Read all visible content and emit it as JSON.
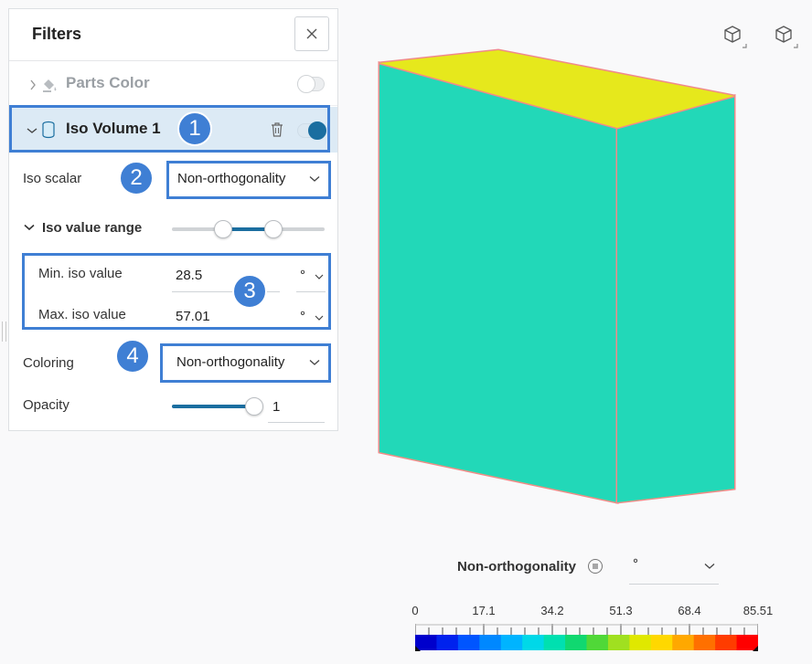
{
  "panel": {
    "title": "Filters",
    "close_icon": "close-icon"
  },
  "filters": [
    {
      "label": "Parts Color",
      "enabled": false,
      "expanded": false,
      "icon": "paint-bucket-icon"
    },
    {
      "label": "Iso Volume 1",
      "enabled": true,
      "expanded": true,
      "icon": "cylinder-icon"
    }
  ],
  "iso_volume": {
    "iso_scalar_label": "Iso scalar",
    "iso_scalar_value": "Non-orthogonality",
    "range_label": "Iso value range",
    "range_fraction": [
      0.333,
      0.667
    ],
    "min_label": "Min. iso value",
    "min_value": "28.5",
    "min_unit": "°",
    "max_label": "Max. iso value",
    "max_value": "57.01",
    "max_unit": "°",
    "coloring_label": "Coloring",
    "coloring_value": "Non-orthogonality",
    "opacity_label": "Opacity",
    "opacity_value": "1",
    "opacity_fraction": 1.0
  },
  "callouts": [
    "1",
    "2",
    "3",
    "4"
  ],
  "viewport": {
    "view_buttons": [
      "cube-view-icon",
      "cube-ortho-icon"
    ]
  },
  "legend": {
    "title": "Non-orthogonality",
    "unit": "°",
    "ticks": [
      "0",
      "17.1",
      "34.2",
      "51.3",
      "68.4",
      "85.51"
    ],
    "colors": [
      "#0000cc",
      "#0022ee",
      "#0055ff",
      "#0088ff",
      "#00b4ff",
      "#00d8e8",
      "#00e0b0",
      "#10d870",
      "#50d838",
      "#a0e020",
      "#e0e800",
      "#ffd800",
      "#ffa800",
      "#ff7000",
      "#ff3c00",
      "#ff0000"
    ]
  }
}
